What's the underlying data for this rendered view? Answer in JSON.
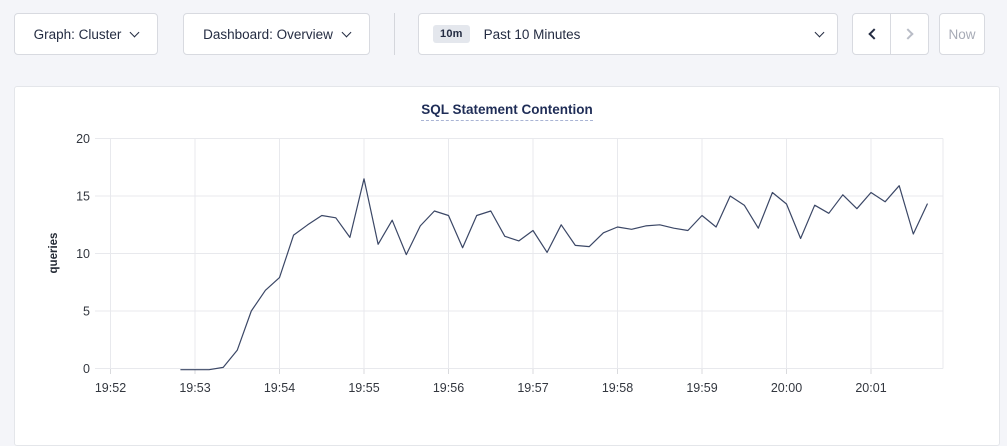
{
  "toolbar": {
    "graph_dropdown_label": "Graph: Cluster",
    "dashboard_dropdown_label": "Dashboard: Overview",
    "time_range": {
      "badge": "10m",
      "label": "Past 10 Minutes"
    },
    "now_button_label": "Now"
  },
  "chart_data": {
    "type": "line",
    "title": "SQL Statement Contention",
    "xlabel": "",
    "ylabel": "queries",
    "ylim": [
      0,
      20
    ],
    "yticks": [
      0,
      5,
      10,
      15,
      20
    ],
    "x_start": "19:52:00",
    "xtick_labels": [
      "19:52",
      "19:53",
      "19:54",
      "19:55",
      "19:56",
      "19:57",
      "19:58",
      "19:59",
      "20:00",
      "20:01"
    ],
    "grid": "on",
    "legend_position": "none",
    "line_color": "#3b4766",
    "grid_color": "#e8e9ed",
    "tick_text_color": "#33373f",
    "series": [
      {
        "name": "queries",
        "points": [
          [
            "19:52:50",
            0
          ],
          [
            "19:53:00",
            0
          ],
          [
            "19:53:10",
            0
          ],
          [
            "19:53:20",
            0.1
          ],
          [
            "19:53:30",
            1.6
          ],
          [
            "19:53:40",
            5
          ],
          [
            "19:53:50",
            6.8
          ],
          [
            "19:54:00",
            7.9
          ],
          [
            "19:54:10",
            11.6
          ],
          [
            "19:54:20",
            12.5
          ],
          [
            "19:54:30",
            13.3
          ],
          [
            "19:54:40",
            13.1
          ],
          [
            "19:54:50",
            11.4
          ],
          [
            "19:55:00",
            16.5
          ],
          [
            "19:55:10",
            10.8
          ],
          [
            "19:55:20",
            12.9
          ],
          [
            "19:55:30",
            9.9
          ],
          [
            "19:55:40",
            12.4
          ],
          [
            "19:55:50",
            13.7
          ],
          [
            "19:56:00",
            13.3
          ],
          [
            "19:56:10",
            10.5
          ],
          [
            "19:56:20",
            13.3
          ],
          [
            "19:56:30",
            13.7
          ],
          [
            "19:56:40",
            11.5
          ],
          [
            "19:56:50",
            11.1
          ],
          [
            "19:57:00",
            12.0
          ],
          [
            "19:57:10",
            10.1
          ],
          [
            "19:57:20",
            12.5
          ],
          [
            "19:57:30",
            10.7
          ],
          [
            "19:57:40",
            10.6
          ],
          [
            "19:57:50",
            11.8
          ],
          [
            "19:58:00",
            12.3
          ],
          [
            "19:58:10",
            12.1
          ],
          [
            "19:58:20",
            12.4
          ],
          [
            "19:58:30",
            12.5
          ],
          [
            "19:58:40",
            12.2
          ],
          [
            "19:58:50",
            12.0
          ],
          [
            "19:59:00",
            13.3
          ],
          [
            "19:59:10",
            12.3
          ],
          [
            "19:59:20",
            15.0
          ],
          [
            "19:59:30",
            14.2
          ],
          [
            "19:59:40",
            12.2
          ],
          [
            "19:59:50",
            15.3
          ],
          [
            "20:00:00",
            14.3
          ],
          [
            "20:00:10",
            11.3
          ],
          [
            "20:00:20",
            14.2
          ],
          [
            "20:00:30",
            13.5
          ],
          [
            "20:00:40",
            15.1
          ],
          [
            "20:00:50",
            13.9
          ],
          [
            "20:01:00",
            15.3
          ],
          [
            "20:01:10",
            14.5
          ],
          [
            "20:01:20",
            15.9
          ],
          [
            "20:01:30",
            11.7
          ],
          [
            "20:01:40",
            14.3
          ]
        ]
      }
    ]
  }
}
